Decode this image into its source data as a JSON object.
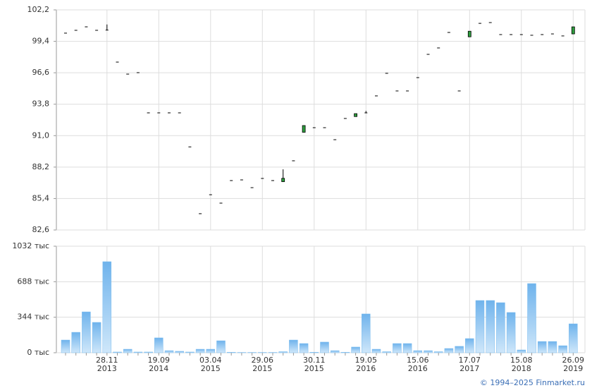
{
  "chart_data": [
    {
      "type": "candlestick",
      "open": [
        100.13,
        100.38,
        100.69,
        100.38,
        100.4,
        97.55,
        96.48,
        96.61,
        93.03,
        93.03,
        93.03,
        93.03,
        90.0,
        84.05,
        85.74,
        84.99,
        87.0,
        87.06,
        86.37,
        87.19,
        87.0,
        86.9,
        88.76,
        91.3,
        91.71,
        91.71,
        90.64,
        92.53,
        92.7,
        93.03,
        94.54,
        96.55,
        94.98,
        94.98,
        96.17,
        98.24,
        98.81,
        100.19,
        94.98,
        99.8,
        101.0,
        101.07,
        100.0,
        100.0,
        100.0,
        99.94,
        100.0,
        100.06,
        99.88,
        100.06
      ],
      "high": [
        100.13,
        100.38,
        100.69,
        100.38,
        100.9,
        97.55,
        96.48,
        96.61,
        93.03,
        93.03,
        93.03,
        93.03,
        90.0,
        84.05,
        85.74,
        84.99,
        87.0,
        87.06,
        86.37,
        87.19,
        87.0,
        88.0,
        88.76,
        91.9,
        91.71,
        91.71,
        90.64,
        92.53,
        92.96,
        93.2,
        94.54,
        96.55,
        94.98,
        94.98,
        96.17,
        98.24,
        98.81,
        100.19,
        94.98,
        100.3,
        101.0,
        101.07,
        100.0,
        100.0,
        100.0,
        99.94,
        100.0,
        100.06,
        99.88,
        100.69
      ],
      "low": [
        100.13,
        100.38,
        100.69,
        100.38,
        100.4,
        97.55,
        96.48,
        96.61,
        93.03,
        93.03,
        93.03,
        93.03,
        90.0,
        84.05,
        85.74,
        84.99,
        87.0,
        87.06,
        86.37,
        87.19,
        87.0,
        86.9,
        88.76,
        91.3,
        91.71,
        91.71,
        90.64,
        92.53,
        92.7,
        93.03,
        94.54,
        96.55,
        94.98,
        94.98,
        96.17,
        98.24,
        98.81,
        100.19,
        94.98,
        99.8,
        101.0,
        101.07,
        100.0,
        100.0,
        100.0,
        99.94,
        100.0,
        100.06,
        99.88,
        100.06
      ],
      "close": [
        100.13,
        100.38,
        100.69,
        100.38,
        100.4,
        97.55,
        96.48,
        96.61,
        93.03,
        93.03,
        93.03,
        93.03,
        90.0,
        84.05,
        85.74,
        84.99,
        87.0,
        87.06,
        86.37,
        87.19,
        87.0,
        87.2,
        88.76,
        91.9,
        91.71,
        91.71,
        90.64,
        92.53,
        92.96,
        93.03,
        94.54,
        96.55,
        94.98,
        94.98,
        96.17,
        98.24,
        98.81,
        100.19,
        94.98,
        100.3,
        101.0,
        101.07,
        100.0,
        100.0,
        100.0,
        99.94,
        100.0,
        100.06,
        99.88,
        100.69
      ],
      "up_color": "#2e9e3e",
      "ylim": [
        82.6,
        102.2
      ],
      "yticks": [
        {
          "value": 82.6,
          "label": "82,6"
        },
        {
          "value": 85.4,
          "label": "85,4"
        },
        {
          "value": 88.2,
          "label": "88,2"
        },
        {
          "value": 91.0,
          "label": "91,0"
        },
        {
          "value": 93.8,
          "label": "93,8"
        },
        {
          "value": 96.6,
          "label": "96,6"
        },
        {
          "value": 99.4,
          "label": "99,4"
        },
        {
          "value": 102.2,
          "label": "102,2"
        }
      ],
      "grid": true
    },
    {
      "type": "bar",
      "categories": [
        null,
        null,
        null,
        null,
        "28.11\n2013",
        null,
        null,
        null,
        null,
        "19.09\n2014",
        null,
        null,
        null,
        null,
        "03.04\n2015",
        null,
        null,
        null,
        null,
        "29.06\n2015",
        null,
        null,
        null,
        null,
        "30.11\n2015",
        null,
        null,
        null,
        null,
        "19.05\n2016",
        null,
        null,
        null,
        null,
        "15.06\n2016",
        null,
        null,
        null,
        null,
        "17.07\n2017",
        null,
        null,
        null,
        null,
        "15.08\n2018",
        null,
        null,
        null,
        null,
        "26.09\n2019"
      ],
      "values": [
        123,
        198,
        396,
        294,
        882,
        7,
        34,
        7,
        7,
        144,
        20,
        14,
        7,
        34,
        34,
        116,
        5,
        3,
        3,
        3,
        3,
        10,
        123,
        89,
        5,
        103,
        20,
        5,
        55,
        376,
        34,
        10,
        89,
        89,
        20,
        20,
        10,
        41,
        62,
        137,
        506,
        506,
        485,
        390,
        27,
        670,
        109,
        109,
        68,
        280
      ],
      "color": "#7bbcef",
      "ylim": [
        0,
        1032
      ],
      "yticks": [
        {
          "value": 0,
          "label": "0 тыс"
        },
        {
          "value": 344,
          "label": "344 тыс"
        },
        {
          "value": 688,
          "label": "688 тыс"
        },
        {
          "value": 1032,
          "label": "1032 тыс"
        }
      ],
      "grid": true
    }
  ],
  "footer": "© 1994–2025 Finmarket.ru"
}
